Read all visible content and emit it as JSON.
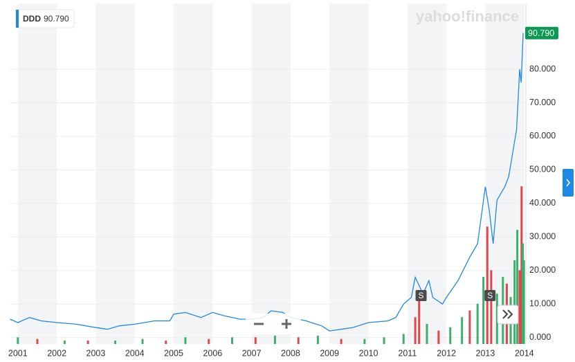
{
  "chart_data": {
    "type": "line",
    "logo": "yahoo!finance",
    "last_value_label": "90.790",
    "xlim": [
      2000.79,
      2014.04
    ],
    "xticks": [
      2001,
      2002,
      2003,
      2004,
      2005,
      2006,
      2007,
      2008,
      2009,
      2010,
      2011,
      2012,
      2013,
      2014
    ],
    "ylim": [
      -1.9,
      99.6
    ],
    "yticks": [
      {
        "value": 0,
        "label": "0.000"
      },
      {
        "value": 10,
        "label": "10.000"
      },
      {
        "value": 20,
        "label": "20.000"
      },
      {
        "value": 30,
        "label": "30.000"
      },
      {
        "value": 40,
        "label": "40.000"
      },
      {
        "value": 50,
        "label": "50.000"
      },
      {
        "value": 60,
        "label": "60.000"
      },
      {
        "value": 70,
        "label": "70.000"
      },
      {
        "value": 80,
        "label": "80.000"
      }
    ],
    "grid": true,
    "series": [
      {
        "name": "DDD",
        "color": "#1e88e5",
        "x": [
          2000.8,
          2001.0,
          2001.3,
          2001.6,
          2002.0,
          2002.5,
          2003.0,
          2003.3,
          2003.6,
          2004.0,
          2004.5,
          2004.9,
          2005.0,
          2005.3,
          2005.7,
          2006.0,
          2006.3,
          2006.7,
          2007.0,
          2007.3,
          2007.5,
          2007.8,
          2008.0,
          2008.4,
          2008.8,
          2009.0,
          2009.3,
          2009.6,
          2010.0,
          2010.5,
          2010.7,
          2010.9,
          2011.1,
          2011.2,
          2011.4,
          2011.55,
          2011.65,
          2011.9,
          2012.0,
          2012.3,
          2012.6,
          2012.8,
          2013.0,
          2013.1,
          2013.2,
          2013.3,
          2013.5,
          2013.6,
          2013.7,
          2013.8,
          2013.85,
          2013.88,
          2013.92,
          2013.97
        ],
        "values": [
          5.5,
          4.5,
          6,
          5,
          4.5,
          4,
          3,
          2.5,
          3.5,
          4,
          5,
          5,
          7,
          7.5,
          6,
          7.5,
          6.5,
          5.5,
          5.5,
          6,
          8,
          7.5,
          6,
          5,
          3.5,
          2,
          2.5,
          3,
          4.5,
          5,
          6,
          10,
          12,
          18,
          13,
          17,
          12,
          10,
          12,
          17,
          24,
          28,
          45,
          38,
          28,
          41,
          45,
          48,
          55,
          62,
          73,
          80,
          76,
          90.79
        ]
      }
    ],
    "events": [
      {
        "x": 2011.35,
        "label": "S"
      },
      {
        "x": 2013.12,
        "label": "S"
      }
    ],
    "volume": {
      "x": [
        2001.0,
        2001.5,
        2002.2,
        2002.8,
        2003.5,
        2004.2,
        2004.8,
        2005.3,
        2005.9,
        2006.5,
        2007.1,
        2007.6,
        2008.2,
        2008.7,
        2009.3,
        2009.9,
        2010.4,
        2010.9,
        2011.2,
        2011.3,
        2011.5,
        2011.8,
        2012.1,
        2012.4,
        2012.6,
        2012.8,
        2012.95,
        2013.05,
        2013.15,
        2013.3,
        2013.45,
        2013.55,
        2013.65,
        2013.75,
        2013.82,
        2013.88,
        2013.93,
        2013.96,
        2013.99
      ],
      "values": [
        2,
        1.5,
        1,
        1,
        1,
        1.5,
        1,
        2,
        1.5,
        2,
        2,
        2.5,
        2,
        2.5,
        1.5,
        1.5,
        2,
        3,
        8,
        14,
        6,
        4,
        5,
        8,
        10,
        12,
        20,
        35,
        22,
        15,
        20,
        18,
        14,
        25,
        34,
        22,
        47,
        30,
        25
      ],
      "colors": [
        "#3dae6e",
        "#e0474c",
        "#3dae6e",
        "#e0474c",
        "#3dae6e",
        "#3dae6e",
        "#e0474c",
        "#3dae6e",
        "#e0474c",
        "#3dae6e",
        "#e0474c",
        "#3dae6e",
        "#e0474c",
        "#3dae6e",
        "#e0474c",
        "#3dae6e",
        "#3dae6e",
        "#3dae6e",
        "#e0474c",
        "#e0474c",
        "#3dae6e",
        "#e0474c",
        "#3dae6e",
        "#3dae6e",
        "#e0474c",
        "#3dae6e",
        "#3dae6e",
        "#e0474c",
        "#e0474c",
        "#3dae6e",
        "#3dae6e",
        "#e0474c",
        "#3dae6e",
        "#3dae6e",
        "#3dae6e",
        "#e0474c",
        "#e0474c",
        "#3dae6e",
        "#3dae6e"
      ]
    }
  }
}
